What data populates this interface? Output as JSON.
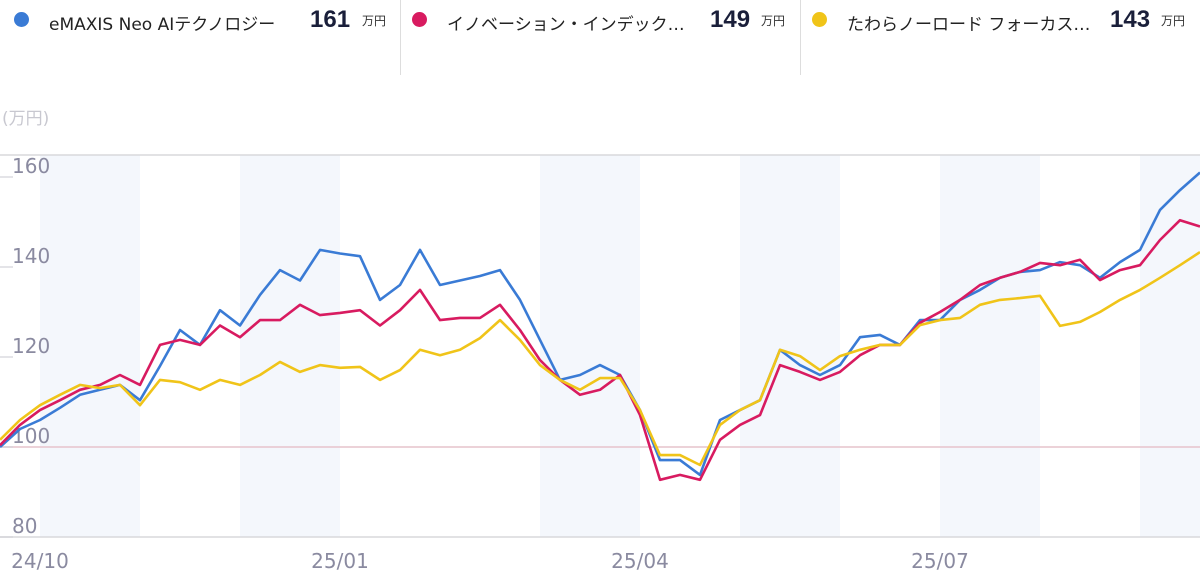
{
  "legend": [
    {
      "name": "eMAXIS Neo AIテクノロジー",
      "value": "161",
      "unit": "万円",
      "color": "#3a7bd5"
    },
    {
      "name": "イノベーション・インデック…",
      "value": "149",
      "unit": "万円",
      "color": "#d81b60"
    },
    {
      "name": "たわらノーロード フォーカス…",
      "value": "143",
      "unit": "万円",
      "color": "#f0c419"
    }
  ],
  "chart_data": {
    "type": "line",
    "ylabel": "(万円)",
    "ylim": [
      80,
      165
    ],
    "yticks": [
      "160",
      "140",
      "120",
      "100",
      "80"
    ],
    "ytick_values": [
      160,
      140,
      120,
      100,
      80
    ],
    "reference_value": 100,
    "xticks": [
      "24/10",
      "25/01",
      "25/04",
      "25/07"
    ],
    "xtick_month_index": [
      0,
      3,
      6,
      9
    ],
    "months_total": 11.6,
    "shaded_month_index": [
      0,
      2,
      5,
      7,
      9,
      11
    ],
    "x_points": 61,
    "series": [
      {
        "name": "eMAXIS Neo AIテクノロジー",
        "color": "#3a7bd5",
        "values": [
          100,
          104,
          106,
          108.7,
          111.6,
          112.7,
          113.8,
          110.4,
          118,
          126,
          122.7,
          130.4,
          127,
          133.8,
          139.3,
          137,
          143.8,
          143,
          142.4,
          132.7,
          136,
          143.8,
          136,
          137,
          138,
          139.3,
          132.7,
          123.8,
          114.9,
          116,
          118.2,
          116,
          108.2,
          97.1,
          97.1,
          93.8,
          106,
          108.2,
          110.4,
          121.6,
          118.2,
          116,
          118.2,
          124.4,
          124.9,
          122.7,
          128.2,
          128.2,
          132.7,
          134.9,
          137.6,
          138.9,
          139.3,
          141.1,
          140.4,
          137.6,
          141.1,
          143.8,
          152.7,
          157.1,
          161
        ]
      },
      {
        "name": "イノベーション・インデックス",
        "color": "#d81b60",
        "values": [
          100.4,
          104.9,
          108.2,
          110.4,
          112.7,
          113.8,
          116,
          113.8,
          122.7,
          123.8,
          122.7,
          127,
          124.4,
          128.2,
          128.2,
          131.6,
          129.3,
          129.8,
          130.4,
          127,
          130.4,
          134.9,
          128.2,
          128.7,
          128.7,
          131.6,
          126,
          119.3,
          114.9,
          111.6,
          112.7,
          116,
          107.1,
          92.7,
          93.8,
          92.7,
          101.6,
          104.9,
          107.1,
          118.2,
          116.7,
          114.9,
          116.7,
          120.4,
          122.7,
          122.7,
          127.6,
          130,
          132.7,
          136,
          137.6,
          138.9,
          140.9,
          140.4,
          141.6,
          137.1,
          139.3,
          140.4,
          146,
          150.4,
          149
        ]
      },
      {
        "name": "たわらノーロード フォーカス",
        "color": "#f0c419",
        "values": [
          101.6,
          106,
          109.3,
          111.6,
          113.8,
          113.1,
          113.8,
          109.3,
          114.9,
          114.4,
          112.7,
          114.9,
          113.8,
          116,
          118.9,
          116.7,
          118.2,
          117.6,
          117.8,
          114.9,
          117.1,
          121.6,
          120.4,
          121.6,
          124.2,
          128.2,
          123.8,
          118.2,
          114.9,
          112.7,
          115.3,
          115.3,
          108.2,
          98.2,
          98.2,
          96,
          104.9,
          108.2,
          110.4,
          121.6,
          120.2,
          117.1,
          120.2,
          121.6,
          122.7,
          122.7,
          127.1,
          128.2,
          128.7,
          131.6,
          132.7,
          133.1,
          133.6,
          126.9,
          127.8,
          130,
          132.7,
          134.9,
          137.6,
          140.4,
          143.3
        ]
      }
    ]
  }
}
